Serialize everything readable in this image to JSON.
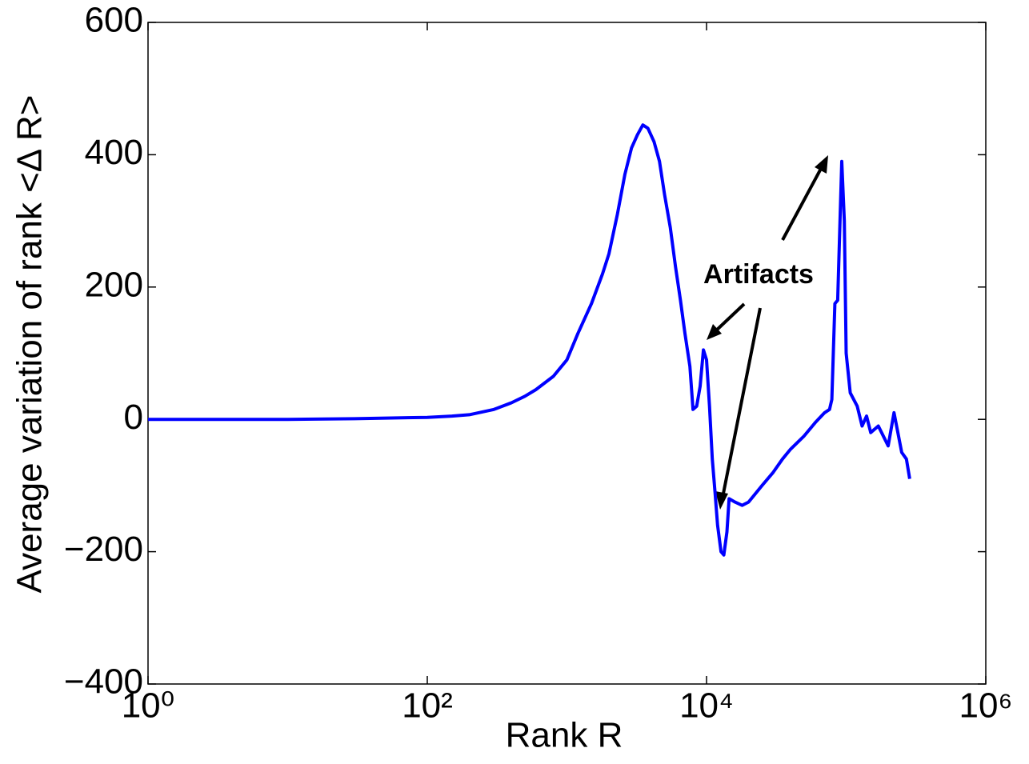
{
  "chart_data": {
    "type": "line",
    "x_label": "Rank R",
    "y_label": "Average variation of rank <Δ R>",
    "annotation": "Artifacts",
    "x_log": true,
    "xlim": [
      1,
      1000000
    ],
    "xticks": [
      {
        "value": 1,
        "label": "10⁰"
      },
      {
        "value": 100,
        "label": "10²"
      },
      {
        "value": 10000,
        "label": "10⁴"
      },
      {
        "value": 1000000,
        "label": "10⁶"
      }
    ],
    "ylim": [
      -400,
      600
    ],
    "yticks": [
      {
        "value": -400,
        "label": "−400"
      },
      {
        "value": -200,
        "label": "−200"
      },
      0,
      200,
      400,
      600
    ],
    "series": [
      {
        "color": "#0000ff",
        "x": [
          1,
          10,
          30,
          100,
          150,
          200,
          300,
          400,
          500,
          600,
          800,
          1000,
          1200,
          1500,
          1800,
          2000,
          2300,
          2600,
          2900,
          3200,
          3500,
          3800,
          4200,
          4600,
          5000,
          5500,
          6000,
          6500,
          7000,
          7600,
          8000,
          8500,
          9000,
          9500,
          10000,
          10500,
          11000,
          11500,
          12000,
          12700,
          13300,
          14000,
          14500,
          16000,
          18000,
          20000,
          25000,
          30000,
          35000,
          40000,
          50000,
          60000,
          70000,
          76000,
          79000,
          83000,
          87000,
          93000,
          97000,
          100000,
          107000,
          120000,
          130000,
          140000,
          150000,
          170000,
          200000,
          220000,
          250000,
          270000,
          285000
        ],
        "values": [
          0,
          0,
          1,
          3,
          5,
          7,
          15,
          25,
          35,
          45,
          65,
          90,
          130,
          175,
          220,
          250,
          310,
          370,
          410,
          430,
          445,
          440,
          420,
          390,
          340,
          290,
          230,
          180,
          130,
          80,
          15,
          20,
          50,
          105,
          90,
          20,
          -60,
          -110,
          -160,
          -200,
          -205,
          -170,
          -120,
          -125,
          -130,
          -125,
          -100,
          -80,
          -60,
          -45,
          -25,
          -5,
          10,
          15,
          30,
          175,
          180,
          390,
          300,
          100,
          40,
          20,
          -10,
          5,
          -20,
          -10,
          -40,
          10,
          -50,
          -60,
          -90
        ]
      }
    ]
  }
}
